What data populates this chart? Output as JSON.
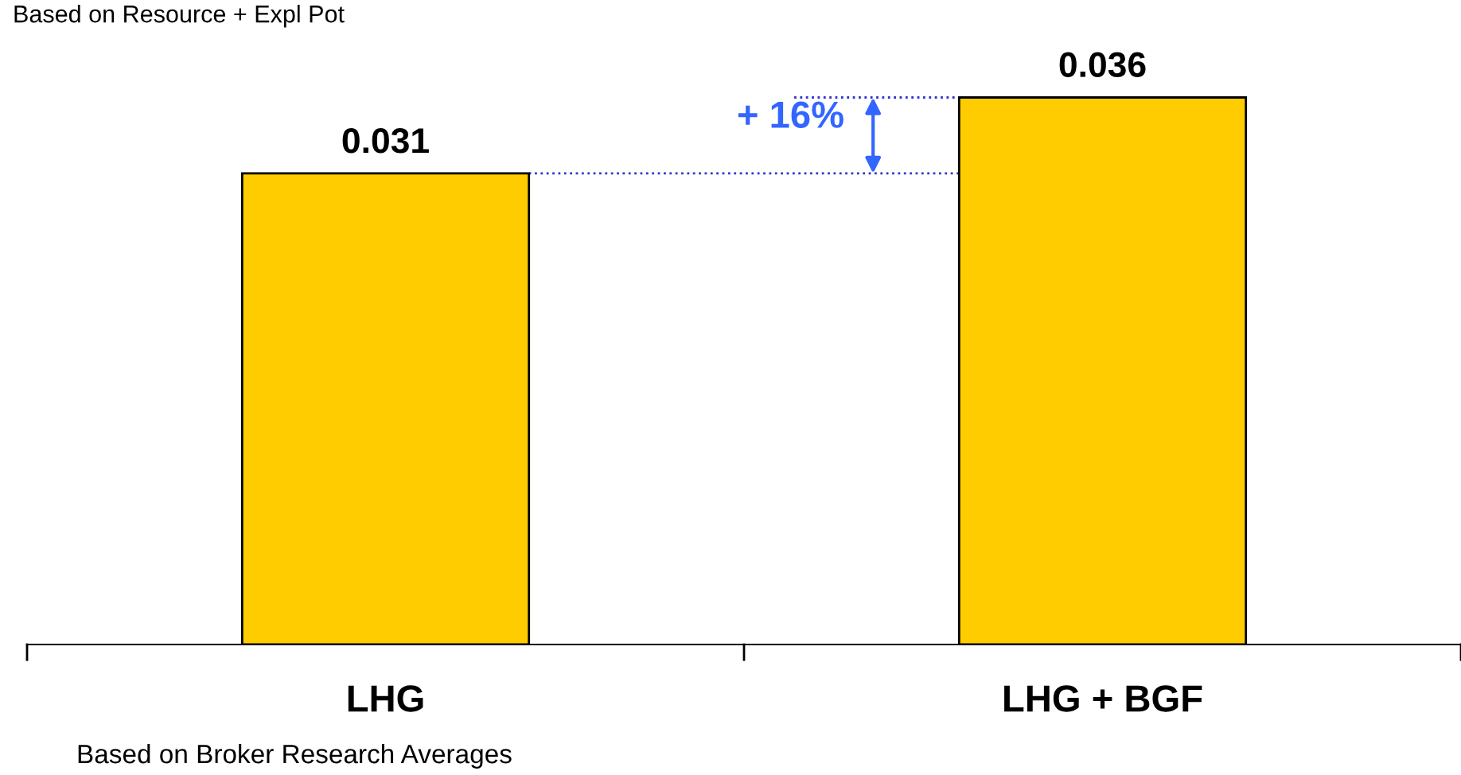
{
  "chart_data": {
    "type": "bar",
    "subtitle": "Based on Resource + Expl Pot",
    "categories": [
      "LHG",
      "LHG + BGF"
    ],
    "values": [
      0.031,
      0.036
    ],
    "color": "#ffcc00",
    "data_labels": true,
    "grid": false,
    "ref_lines": [
      {
        "axis": "y",
        "value": 0.031,
        "color": "#3333cc",
        "line_style": "dotted"
      },
      {
        "axis": "y",
        "value": 0.036,
        "color": "#3333cc",
        "line_style": "dotted"
      }
    ],
    "annotations": [
      "+ 16%",
      "Based on Broker Research Averages"
    ]
  }
}
